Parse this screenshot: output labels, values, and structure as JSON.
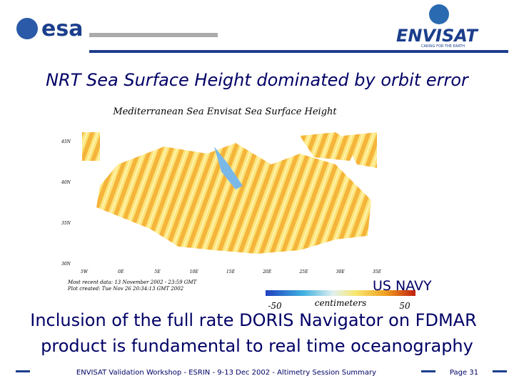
{
  "header": {
    "logo_left": "esa",
    "logo_right": "ENVISAT",
    "logo_right_tagline": "CARING FOR THE EARTH"
  },
  "title": "NRT Sea Surface Height dominated by orbit error",
  "figure": {
    "title": "Mediterranean Sea Envisat Sea Surface Height",
    "lat_labels": [
      "45N",
      "40N",
      "35N",
      "30N"
    ],
    "lon_labels": [
      "5W",
      "0E",
      "5E",
      "10E",
      "15E",
      "20E",
      "25E",
      "30E",
      "35E"
    ],
    "notes": [
      "Most recent data: 13 November 2002 - 23:59 GMT",
      "Plot created: Tue Nov 26 20:34:13 GMT 2002"
    ],
    "colorbar": {
      "min_label": "-50",
      "unit": "centimeters",
      "max_label": "50"
    },
    "credit": "US NAVY"
  },
  "body": [
    "Inclusion of the full rate DORIS Navigator on FDMAR",
    "product is fundamental to real time oceanography"
  ],
  "footer": {
    "text": "ENVISAT Validation Workshop - ESRIN - 9-13 Dec 2002 - Altimetry Session Summary",
    "page": "Page 31"
  }
}
